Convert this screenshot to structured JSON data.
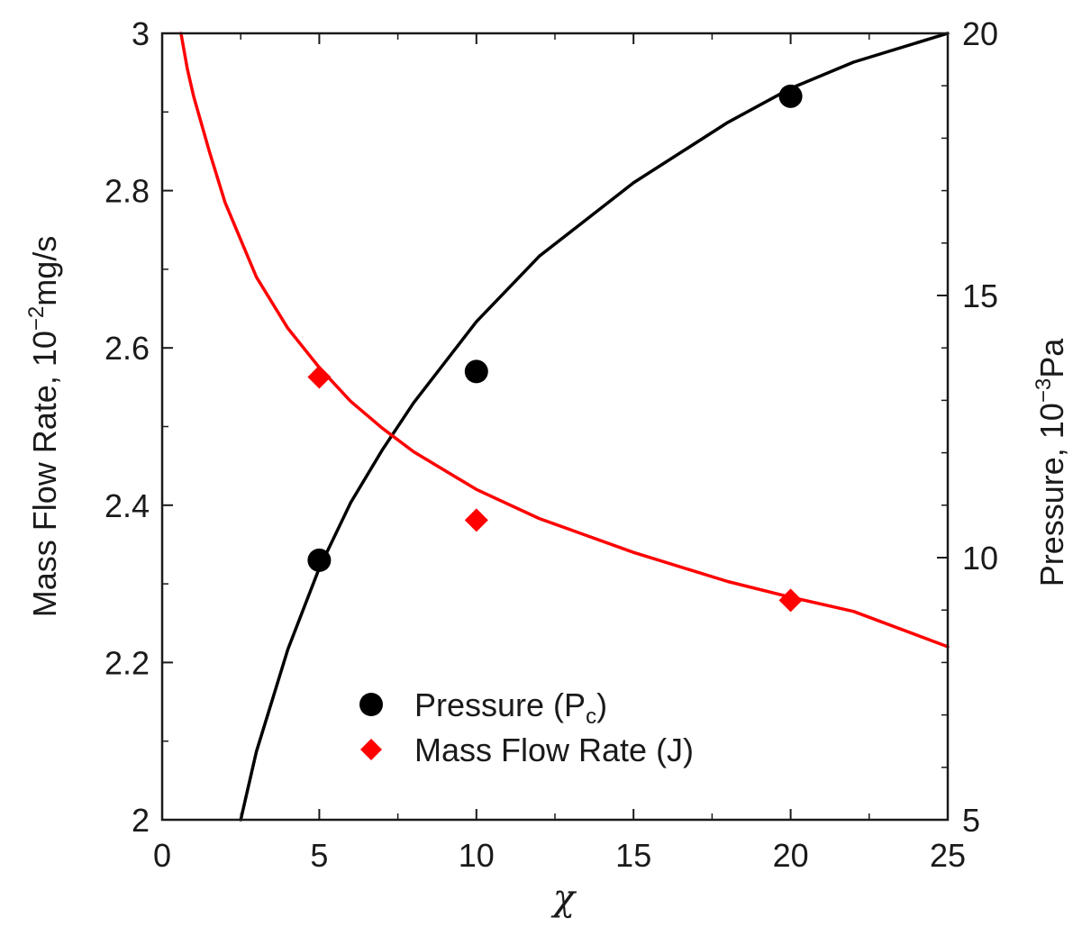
{
  "chart_data": {
    "type": "scatter",
    "title": "",
    "xlabel": "χ",
    "ylabel_left": {
      "text": "Mass Flow Rate, 10",
      "sup": "−2",
      "unit": "mg/s"
    },
    "ylabel_right": {
      "text": "Pressure, 10",
      "sup": "−3",
      "unit": "Pa"
    },
    "xlim": [
      0,
      25
    ],
    "ylim_left": [
      2,
      3
    ],
    "ylim_right": [
      5,
      20
    ],
    "x_ticks": [
      "0",
      "5",
      "10",
      "15",
      "20",
      "25"
    ],
    "y_left_ticks": [
      "2",
      "2.2",
      "2.4",
      "2.6",
      "2.8",
      "3"
    ],
    "y_right_ticks": [
      "5",
      "10",
      "15",
      "20"
    ],
    "grid": false,
    "legend_position": "bottom-center",
    "series": [
      {
        "name": "Pressure (P",
        "name_sub": "c",
        "name_suffix": ")",
        "axis": "right",
        "marker": "circle",
        "color": "#000000",
        "x": [
          5,
          10,
          20
        ],
        "y": [
          9.95,
          13.55,
          18.8
        ]
      },
      {
        "name": "Mass Flow Rate (J)",
        "axis": "left",
        "marker": "diamond",
        "color": "#ff0000",
        "x": [
          5,
          10,
          20
        ],
        "y": [
          2.563,
          2.381,
          2.279
        ]
      }
    ],
    "fits": [
      {
        "axis": "right",
        "color": "#000000",
        "x": [
          2.5,
          3,
          4,
          5,
          6,
          7,
          8,
          10,
          12,
          15,
          18,
          20,
          22,
          25
        ],
        "y": [
          5.0,
          6.3,
          8.25,
          9.8,
          11.05,
          12.05,
          12.95,
          14.5,
          15.75,
          17.15,
          18.3,
          18.95,
          19.45,
          20.0
        ]
      },
      {
        "axis": "left",
        "color": "#ff0000",
        "x": [
          0.6,
          0.8,
          1,
          1.5,
          2,
          3,
          4,
          5,
          6,
          7,
          8,
          10,
          12,
          15,
          18,
          20,
          22,
          25
        ],
        "y": [
          3.0,
          2.955,
          2.92,
          2.85,
          2.785,
          2.69,
          2.625,
          2.575,
          2.532,
          2.498,
          2.468,
          2.42,
          2.383,
          2.34,
          2.303,
          2.283,
          2.265,
          2.22
        ]
      }
    ]
  }
}
